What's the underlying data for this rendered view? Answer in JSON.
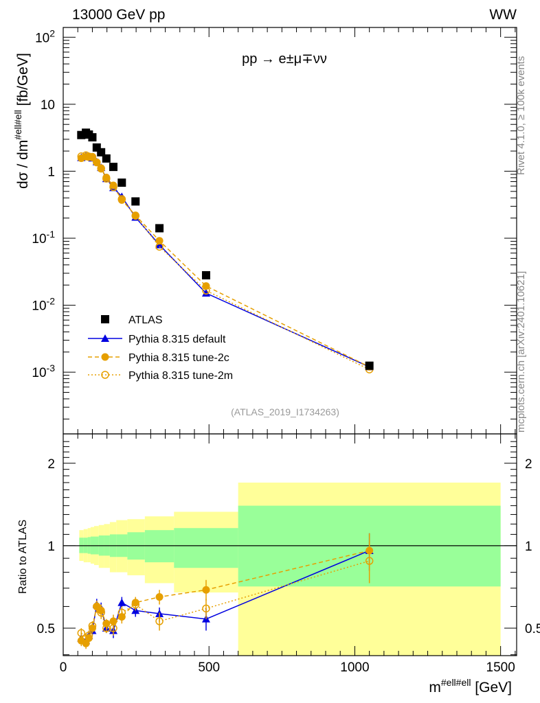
{
  "header": {
    "left": "13000 GeV pp",
    "right": "WW"
  },
  "side_text": {
    "rivet": "Rivet 4.1.0, ≥ 100k events",
    "mcplots": "mcplots.cern.ch [arXiv:2401.10621]"
  },
  "colors": {
    "atlas": "#000000",
    "default": "#0000e0",
    "tune2c": "#e69f00",
    "tune2m": "#e69f00",
    "band_total": "#ffff99",
    "band_stat": "#99ff99"
  },
  "chart_data": [
    {
      "type": "scatter",
      "title": "pp → e±μ∓νν",
      "analysis": "(ATLAS_2019_I1734263)",
      "ylabel": "dσ / dm",
      "ylabel_sup": "#ell#ell",
      "ylabel_unit": "[fb/GeV]",
      "yscale": "log",
      "ylim": [
        0.00012,
        140
      ],
      "xlim": [
        0,
        1555
      ],
      "y_ticks": [
        {
          "v": 0.001,
          "l": "10",
          "e": "-3"
        },
        {
          "v": 0.01,
          "l": "10",
          "e": "-2"
        },
        {
          "v": 0.1,
          "l": "10",
          "e": "-1"
        },
        {
          "v": 1,
          "l": "1",
          "e": ""
        },
        {
          "v": 10,
          "l": "10",
          "e": ""
        },
        {
          "v": 100,
          "l": "10",
          "e": "2"
        }
      ],
      "x": [
        62,
        78,
        88,
        100,
        115,
        130,
        148,
        172,
        201,
        248,
        330,
        490,
        1050
      ],
      "bin_edges": [
        55,
        70,
        84,
        94,
        106,
        122,
        140,
        160,
        182,
        220,
        280,
        380,
        600,
        1500
      ],
      "atlas": [
        3.47,
        3.76,
        3.53,
        3.21,
        2.26,
        1.92,
        1.55,
        1.16,
        0.675,
        0.354,
        0.141,
        0.028,
        0.00125
      ],
      "legend": [
        "ATLAS",
        "Pythia 8.315 default",
        "Pythia 8.315 tune-2c",
        "Pythia 8.315 tune-2m"
      ],
      "legend_placement": "lower-left"
    },
    {
      "type": "scatter",
      "ylabel": "Ratio to ATLAS",
      "xlabel": "m",
      "xlabel_sup": "#ell#ell",
      "xlabel_unit": "[GeV]",
      "yscale": "log",
      "ylim": [
        0.397,
        2.56
      ],
      "xlim": [
        0,
        1555
      ],
      "x_ticks": [
        0,
        500,
        1000,
        1500
      ],
      "y_ticks": [
        0.5,
        1,
        2
      ],
      "series": [
        {
          "name": "Pythia 8.315 default",
          "values": [
            0.46,
            0.45,
            0.47,
            0.49,
            0.61,
            0.59,
            0.5,
            0.49,
            0.62,
            0.58,
            0.565,
            0.54,
            0.96
          ],
          "err": [
            0.02,
            0.02,
            0.02,
            0.02,
            0.03,
            0.03,
            0.02,
            0.03,
            0.03,
            0.03,
            0.03,
            0.05,
            0.15
          ]
        },
        {
          "name": "Pythia 8.315 tune-2c",
          "values": [
            0.45,
            0.44,
            0.46,
            0.5,
            0.6,
            0.58,
            0.52,
            0.53,
            0.55,
            0.62,
            0.65,
            0.69,
            0.96
          ],
          "err": [
            0.02,
            0.02,
            0.02,
            0.02,
            0.03,
            0.03,
            0.02,
            0.03,
            0.03,
            0.03,
            0.04,
            0.06,
            0.15
          ]
        },
        {
          "name": "Pythia 8.315 tune-2m",
          "values": [
            0.48,
            0.46,
            0.47,
            0.51,
            0.6,
            0.57,
            0.5,
            0.5,
            0.57,
            0.61,
            0.53,
            0.59,
            0.88
          ],
          "err": [
            0.02,
            0.02,
            0.02,
            0.02,
            0.03,
            0.03,
            0.02,
            0.03,
            0.03,
            0.03,
            0.04,
            0.05,
            0.15
          ]
        }
      ],
      "band_stat": [
        [
          0.94,
          1.07
        ],
        [
          0.94,
          1.07
        ],
        [
          0.935,
          1.075
        ],
        [
          0.93,
          1.08
        ],
        [
          0.93,
          1.08
        ],
        [
          0.92,
          1.09
        ],
        [
          0.92,
          1.09
        ],
        [
          0.91,
          1.1
        ],
        [
          0.91,
          1.1
        ],
        [
          0.89,
          1.12
        ],
        [
          0.87,
          1.14
        ],
        [
          0.83,
          1.16
        ],
        [
          0.71,
          1.4
        ]
      ],
      "band_total": [
        [
          0.88,
          1.14
        ],
        [
          0.87,
          1.15
        ],
        [
          0.87,
          1.16
        ],
        [
          0.86,
          1.17
        ],
        [
          0.85,
          1.18
        ],
        [
          0.83,
          1.19
        ],
        [
          0.83,
          1.2
        ],
        [
          0.8,
          1.22
        ],
        [
          0.8,
          1.24
        ],
        [
          0.78,
          1.25
        ],
        [
          0.73,
          1.28
        ],
        [
          0.675,
          1.33
        ],
        [
          0.3,
          1.7
        ]
      ]
    }
  ]
}
